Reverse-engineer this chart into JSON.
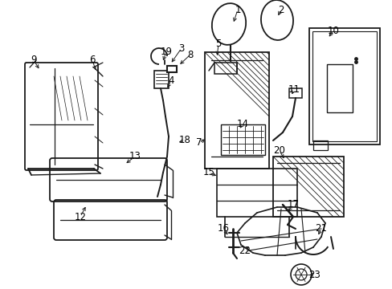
{
  "bg_color": "#ffffff",
  "line_color": "#1a1a1a",
  "text_color": "#000000",
  "label_fontsize": 8.5,
  "fig_width": 4.89,
  "fig_height": 3.6,
  "dpi": 100
}
